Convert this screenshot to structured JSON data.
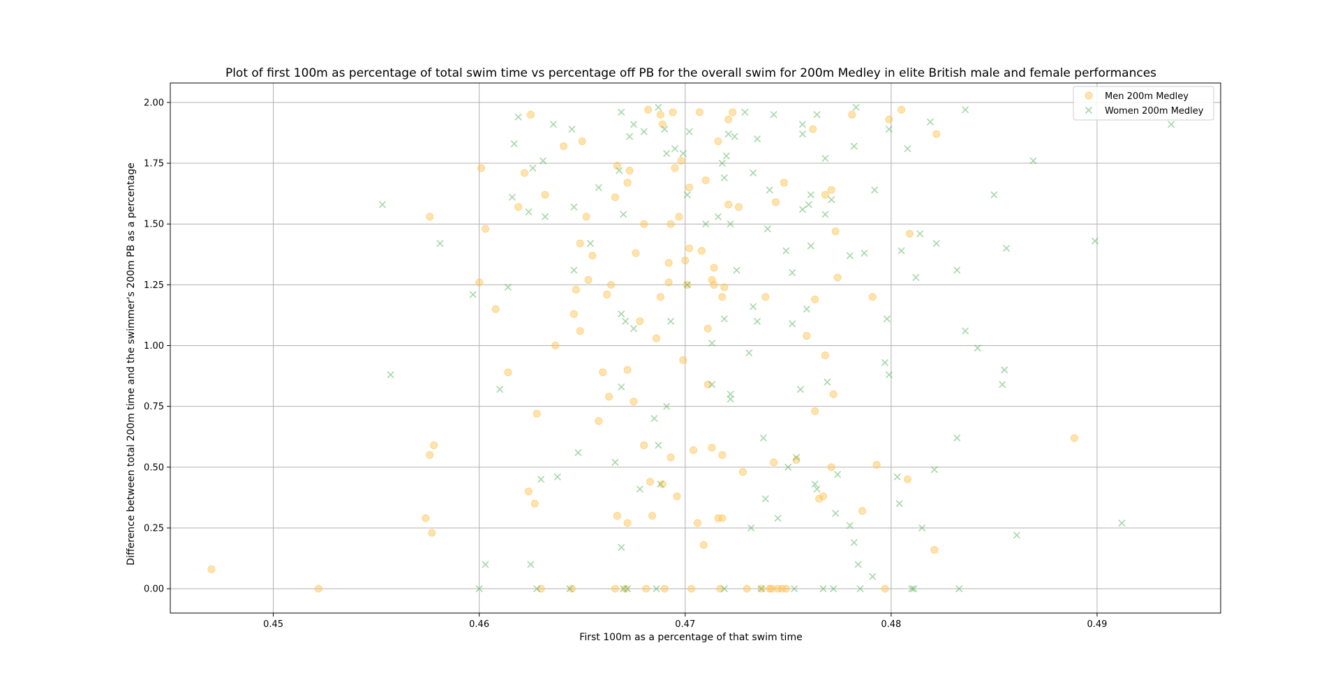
{
  "chart_data": {
    "type": "scatter",
    "title": "Plot of first 100m as percentage of total swim time vs percentage off PB for the overall swim for 200m Medley in elite British male and female performances",
    "xlabel": "First 100m as a percentage of that swim time",
    "ylabel": "Difference between total 200m time and the swimmer's 200m PB as a percentage",
    "xlim": [
      0.445,
      0.496
    ],
    "ylim": [
      -0.1,
      2.08
    ],
    "xticks": [
      0.45,
      0.46,
      0.47,
      0.48,
      0.49
    ],
    "xtick_labels": [
      "0.45",
      "0.46",
      "0.47",
      "0.48",
      "0.49"
    ],
    "yticks": [
      0.0,
      0.25,
      0.5,
      0.75,
      1.0,
      1.25,
      1.5,
      1.75,
      2.0
    ],
    "ytick_labels": [
      "0.00",
      "0.25",
      "0.50",
      "0.75",
      "1.00",
      "1.25",
      "1.50",
      "1.75",
      "2.00"
    ],
    "grid": true,
    "legend_position": "top-right",
    "series": [
      {
        "name": "Men 200m Medley",
        "marker": "circle",
        "color": "#ffc04d",
        "points": [
          [
            0.447,
            0.08
          ],
          [
            0.4522,
            0.0
          ],
          [
            0.4574,
            0.29
          ],
          [
            0.4576,
            0.55
          ],
          [
            0.4576,
            1.53
          ],
          [
            0.4577,
            0.23
          ],
          [
            0.4578,
            0.59
          ],
          [
            0.46,
            1.26
          ],
          [
            0.4601,
            1.73
          ],
          [
            0.4603,
            1.48
          ],
          [
            0.4608,
            1.15
          ],
          [
            0.4614,
            0.89
          ],
          [
            0.4619,
            1.57
          ],
          [
            0.4622,
            1.71
          ],
          [
            0.4624,
            0.4
          ],
          [
            0.4625,
            1.95
          ],
          [
            0.4627,
            0.35
          ],
          [
            0.4628,
            0.72
          ],
          [
            0.463,
            0.0
          ],
          [
            0.4632,
            1.62
          ],
          [
            0.4637,
            1.0
          ],
          [
            0.4641,
            1.82
          ],
          [
            0.4645,
            0.0
          ],
          [
            0.4646,
            1.13
          ],
          [
            0.4647,
            1.23
          ],
          [
            0.4649,
            1.06
          ],
          [
            0.4649,
            1.42
          ],
          [
            0.465,
            1.84
          ],
          [
            0.4652,
            1.53
          ],
          [
            0.4653,
            1.27
          ],
          [
            0.4655,
            1.37
          ],
          [
            0.4658,
            0.69
          ],
          [
            0.466,
            0.89
          ],
          [
            0.4662,
            1.21
          ],
          [
            0.4663,
            0.79
          ],
          [
            0.4664,
            1.25
          ],
          [
            0.4666,
            0.0
          ],
          [
            0.4666,
            1.61
          ],
          [
            0.4667,
            0.3
          ],
          [
            0.4667,
            1.74
          ],
          [
            0.4671,
            0.0
          ],
          [
            0.4672,
            0.27
          ],
          [
            0.4672,
            1.67
          ],
          [
            0.4672,
            0.9
          ],
          [
            0.4673,
            1.72
          ],
          [
            0.4675,
            0.77
          ],
          [
            0.4676,
            1.38
          ],
          [
            0.4678,
            1.1
          ],
          [
            0.468,
            0.59
          ],
          [
            0.468,
            1.5
          ],
          [
            0.4681,
            0.0
          ],
          [
            0.4682,
            1.97
          ],
          [
            0.4683,
            0.44
          ],
          [
            0.4684,
            0.3
          ],
          [
            0.4686,
            1.03
          ],
          [
            0.4688,
            1.2
          ],
          [
            0.4688,
            1.95
          ],
          [
            0.4689,
            0.43
          ],
          [
            0.4689,
            1.91
          ],
          [
            0.469,
            0.0
          ],
          [
            0.4692,
            1.34
          ],
          [
            0.4692,
            1.26
          ],
          [
            0.4693,
            0.54
          ],
          [
            0.4693,
            1.5
          ],
          [
            0.4694,
            1.96
          ],
          [
            0.4695,
            1.73
          ],
          [
            0.4696,
            0.38
          ],
          [
            0.4697,
            1.53
          ],
          [
            0.4698,
            1.76
          ],
          [
            0.4699,
            0.94
          ],
          [
            0.47,
            1.35
          ],
          [
            0.4701,
            1.25
          ],
          [
            0.4702,
            1.4
          ],
          [
            0.4702,
            1.65
          ],
          [
            0.4703,
            0.0
          ],
          [
            0.4704,
            0.57
          ],
          [
            0.4706,
            0.27
          ],
          [
            0.4707,
            1.96
          ],
          [
            0.4708,
            1.39
          ],
          [
            0.4709,
            0.18
          ],
          [
            0.471,
            1.68
          ],
          [
            0.4711,
            1.07
          ],
          [
            0.4711,
            0.84
          ],
          [
            0.4713,
            1.27
          ],
          [
            0.4713,
            0.58
          ],
          [
            0.4714,
            1.32
          ],
          [
            0.4714,
            1.25
          ],
          [
            0.4716,
            1.84
          ],
          [
            0.4716,
            0.29
          ],
          [
            0.4717,
            0.0
          ],
          [
            0.4718,
            0.29
          ],
          [
            0.4718,
            1.2
          ],
          [
            0.4718,
            0.55
          ],
          [
            0.4719,
            1.24
          ],
          [
            0.4721,
            1.58
          ],
          [
            0.4721,
            1.93
          ],
          [
            0.4723,
            1.96
          ],
          [
            0.4726,
            1.57
          ],
          [
            0.4728,
            0.48
          ],
          [
            0.473,
            0.0
          ],
          [
            0.4737,
            0.0
          ],
          [
            0.4739,
            1.2
          ],
          [
            0.4741,
            0.0
          ],
          [
            0.4742,
            0.0
          ],
          [
            0.4743,
            0.52
          ],
          [
            0.4744,
            1.59
          ],
          [
            0.4745,
            0.0
          ],
          [
            0.4747,
            0.0
          ],
          [
            0.4748,
            1.67
          ],
          [
            0.4749,
            0.0
          ],
          [
            0.4754,
            0.53
          ],
          [
            0.4759,
            1.04
          ],
          [
            0.4762,
            1.89
          ],
          [
            0.4763,
            1.19
          ],
          [
            0.4763,
            0.73
          ],
          [
            0.4765,
            0.37
          ],
          [
            0.4767,
            0.38
          ],
          [
            0.4768,
            0.96
          ],
          [
            0.4768,
            1.62
          ],
          [
            0.4771,
            0.5
          ],
          [
            0.4771,
            1.64
          ],
          [
            0.4772,
            0.8
          ],
          [
            0.4773,
            1.47
          ],
          [
            0.4774,
            1.28
          ],
          [
            0.4781,
            1.95
          ],
          [
            0.4786,
            0.32
          ],
          [
            0.4791,
            1.2
          ],
          [
            0.4793,
            0.51
          ],
          [
            0.4797,
            0.0
          ],
          [
            0.4799,
            1.93
          ],
          [
            0.4805,
            1.97
          ],
          [
            0.4808,
            0.45
          ],
          [
            0.4809,
            1.46
          ],
          [
            0.4821,
            0.16
          ],
          [
            0.4822,
            1.87
          ],
          [
            0.4889,
            0.62
          ]
        ]
      },
      {
        "name": "Women 200m Medley",
        "marker": "x",
        "color": "#4caf50",
        "points": [
          [
            0.4553,
            1.58
          ],
          [
            0.4557,
            0.88
          ],
          [
            0.4581,
            1.42
          ],
          [
            0.4597,
            1.21
          ],
          [
            0.46,
            0.0
          ],
          [
            0.4603,
            0.1
          ],
          [
            0.461,
            0.82
          ],
          [
            0.4614,
            1.24
          ],
          [
            0.4616,
            1.61
          ],
          [
            0.4617,
            1.83
          ],
          [
            0.4619,
            1.94
          ],
          [
            0.4624,
            1.55
          ],
          [
            0.4625,
            0.1
          ],
          [
            0.4626,
            1.73
          ],
          [
            0.4628,
            0.0
          ],
          [
            0.463,
            0.45
          ],
          [
            0.4631,
            1.76
          ],
          [
            0.4632,
            1.53
          ],
          [
            0.4636,
            1.91
          ],
          [
            0.4638,
            0.46
          ],
          [
            0.4644,
            0.0
          ],
          [
            0.4645,
            1.89
          ],
          [
            0.4646,
            1.57
          ],
          [
            0.4646,
            1.31
          ],
          [
            0.4648,
            0.56
          ],
          [
            0.4654,
            1.42
          ],
          [
            0.4658,
            1.65
          ],
          [
            0.4666,
            0.52
          ],
          [
            0.4668,
            1.72
          ],
          [
            0.4669,
            0.17
          ],
          [
            0.4669,
            1.13
          ],
          [
            0.4669,
            0.83
          ],
          [
            0.4669,
            1.96
          ],
          [
            0.467,
            0.0
          ],
          [
            0.467,
            1.54
          ],
          [
            0.4671,
            1.1
          ],
          [
            0.4672,
            0.0
          ],
          [
            0.4673,
            1.86
          ],
          [
            0.4675,
            1.07
          ],
          [
            0.4675,
            1.91
          ],
          [
            0.4678,
            0.41
          ],
          [
            0.468,
            1.88
          ],
          [
            0.4685,
            0.7
          ],
          [
            0.4686,
            0.0
          ],
          [
            0.4687,
            0.59
          ],
          [
            0.4687,
            1.98
          ],
          [
            0.4688,
            0.43
          ],
          [
            0.469,
            1.89
          ],
          [
            0.4691,
            0.75
          ],
          [
            0.4691,
            1.79
          ],
          [
            0.4693,
            1.1
          ],
          [
            0.4695,
            1.81
          ],
          [
            0.4699,
            1.79
          ],
          [
            0.4701,
            1.25
          ],
          [
            0.4701,
            1.62
          ],
          [
            0.4702,
            1.88
          ],
          [
            0.471,
            1.5
          ],
          [
            0.4713,
            1.01
          ],
          [
            0.4713,
            0.84
          ],
          [
            0.4716,
            1.53
          ],
          [
            0.4718,
            1.75
          ],
          [
            0.4719,
            0.0
          ],
          [
            0.4719,
            1.69
          ],
          [
            0.4719,
            1.11
          ],
          [
            0.472,
            1.78
          ],
          [
            0.4721,
            1.87
          ],
          [
            0.4722,
            1.5
          ],
          [
            0.4722,
            0.8
          ],
          [
            0.4722,
            0.78
          ],
          [
            0.4724,
            1.86
          ],
          [
            0.4725,
            1.31
          ],
          [
            0.4729,
            1.96
          ],
          [
            0.4731,
            0.97
          ],
          [
            0.4732,
            0.25
          ],
          [
            0.4733,
            1.71
          ],
          [
            0.4733,
            1.16
          ],
          [
            0.4735,
            1.1
          ],
          [
            0.4735,
            1.85
          ],
          [
            0.4737,
            0.0
          ],
          [
            0.4738,
            0.62
          ],
          [
            0.4739,
            0.37
          ],
          [
            0.474,
            1.48
          ],
          [
            0.4741,
            1.64
          ],
          [
            0.4743,
            1.95
          ],
          [
            0.4745,
            0.29
          ],
          [
            0.4749,
            1.39
          ],
          [
            0.475,
            0.5
          ],
          [
            0.4752,
            1.3
          ],
          [
            0.4752,
            1.09
          ],
          [
            0.4753,
            0.0
          ],
          [
            0.4754,
            0.54
          ],
          [
            0.4756,
            0.82
          ],
          [
            0.4757,
            1.56
          ],
          [
            0.4757,
            1.87
          ],
          [
            0.4757,
            1.91
          ],
          [
            0.4759,
            1.15
          ],
          [
            0.476,
            1.58
          ],
          [
            0.4761,
            1.62
          ],
          [
            0.4761,
            1.41
          ],
          [
            0.4763,
            0.43
          ],
          [
            0.4764,
            1.95
          ],
          [
            0.4764,
            0.41
          ],
          [
            0.4767,
            0.0
          ],
          [
            0.4768,
            1.54
          ],
          [
            0.4768,
            1.77
          ],
          [
            0.4769,
            0.85
          ],
          [
            0.4771,
            1.6
          ],
          [
            0.4772,
            0.0
          ],
          [
            0.4773,
            0.31
          ],
          [
            0.4774,
            0.47
          ],
          [
            0.478,
            0.26
          ],
          [
            0.478,
            1.37
          ],
          [
            0.4782,
            0.19
          ],
          [
            0.4782,
            1.82
          ],
          [
            0.4783,
            1.98
          ],
          [
            0.4784,
            0.1
          ],
          [
            0.4785,
            0.0
          ],
          [
            0.4787,
            1.38
          ],
          [
            0.4791,
            0.05
          ],
          [
            0.4792,
            1.64
          ],
          [
            0.4797,
            0.93
          ],
          [
            0.4798,
            1.11
          ],
          [
            0.4799,
            1.89
          ],
          [
            0.4799,
            0.88
          ],
          [
            0.4803,
            0.46
          ],
          [
            0.4804,
            0.35
          ],
          [
            0.4805,
            1.39
          ],
          [
            0.4808,
            1.81
          ],
          [
            0.481,
            0.0
          ],
          [
            0.4811,
            0.0
          ],
          [
            0.4812,
            1.28
          ],
          [
            0.4814,
            1.46
          ],
          [
            0.4815,
            0.25
          ],
          [
            0.4819,
            1.92
          ],
          [
            0.4821,
            0.49
          ],
          [
            0.4822,
            1.42
          ],
          [
            0.4832,
            1.31
          ],
          [
            0.4832,
            0.62
          ],
          [
            0.4833,
            0.0
          ],
          [
            0.4836,
            1.97
          ],
          [
            0.4836,
            1.06
          ],
          [
            0.4842,
            0.99
          ],
          [
            0.485,
            1.62
          ],
          [
            0.4854,
            0.84
          ],
          [
            0.4855,
            0.9
          ],
          [
            0.4856,
            1.4
          ],
          [
            0.4861,
            0.22
          ],
          [
            0.4869,
            1.76
          ],
          [
            0.4899,
            1.43
          ],
          [
            0.4912,
            0.27
          ],
          [
            0.4936,
            1.91
          ]
        ]
      }
    ]
  }
}
